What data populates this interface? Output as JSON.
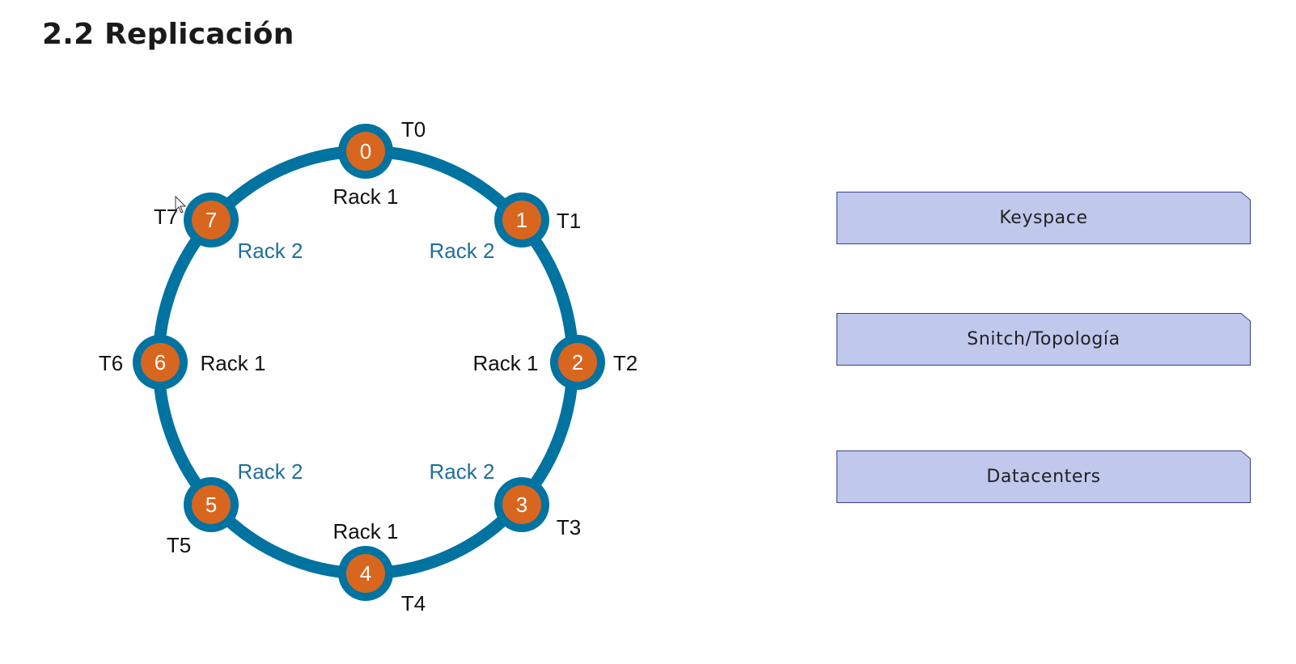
{
  "title": "2.2 Replicación",
  "ring": {
    "ring_color": "#0073a0",
    "node_color": "#d9661f",
    "rack2_color": "#1f6f9a",
    "nodes": [
      {
        "id": "0",
        "token": "T0",
        "rack": "Rack 1"
      },
      {
        "id": "1",
        "token": "T1",
        "rack": "Rack 2"
      },
      {
        "id": "2",
        "token": "T2",
        "rack": "Rack 1"
      },
      {
        "id": "3",
        "token": "T3",
        "rack": "Rack 2"
      },
      {
        "id": "4",
        "token": "T4",
        "rack": "Rack 1"
      },
      {
        "id": "5",
        "token": "T5",
        "rack": "Rack 2"
      },
      {
        "id": "6",
        "token": "T6",
        "rack": "Rack 1"
      },
      {
        "id": "7",
        "token": "T7",
        "rack": "Rack 2"
      }
    ]
  },
  "concepts": {
    "fill": "#c0c8ec",
    "border": "#3a3f8a",
    "items": [
      {
        "label": "Keyspace"
      },
      {
        "label": "Snitch/Topología"
      },
      {
        "label": "Datacenters"
      }
    ]
  }
}
